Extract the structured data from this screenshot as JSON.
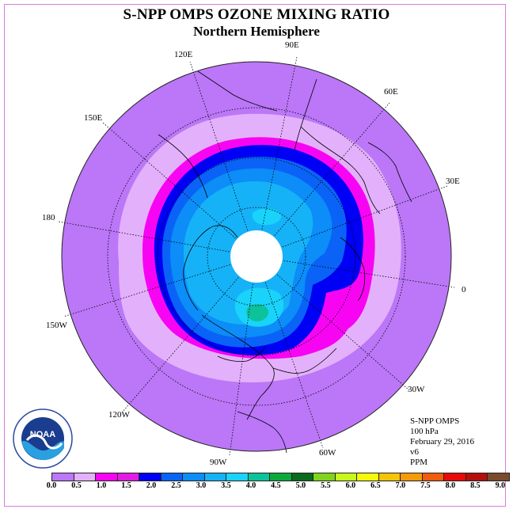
{
  "title": "S-NPP OMPS OZONE MIXING RATIO",
  "subtitle": "Northern Hemisphere",
  "longitude_labels": {
    "e90": "90E",
    "e60": "60E",
    "e30": "30E",
    "zero": "0",
    "w30": "30W",
    "w60": "60W",
    "w90": "90W",
    "w120": "120W",
    "w150": "150W",
    "lon180": "180",
    "e150": "150E",
    "e120": "120E"
  },
  "info": {
    "instrument": "S-NPP OMPS",
    "level": "100 hPa",
    "date": "February 29, 2016",
    "version": "v6",
    "units": "PPM"
  },
  "logo_text": "NOAA",
  "colorbar": {
    "colors": [
      "#bb77f7",
      "#e3b1fb",
      "#f705f3",
      "#e11ce4",
      "#0000f5",
      "#0a63f6",
      "#0c8df8",
      "#16b2f8",
      "#19d3fa",
      "#0cc29a",
      "#0aab3b",
      "#0a6a1d",
      "#81d41b",
      "#c7f81d",
      "#f6f90a",
      "#f5c309",
      "#f39b0a",
      "#f05b0c",
      "#e80a0a",
      "#b4100e",
      "#7a4a2c"
    ],
    "ticks": [
      "0.0",
      "0.5",
      "1.0",
      "1.5",
      "2.0",
      "2.5",
      "3.0",
      "3.5",
      "4.0",
      "4.5",
      "5.0",
      "5.5",
      "6.0",
      "6.5",
      "7.0",
      "7.5",
      "8.0",
      "8.5",
      "9.0"
    ]
  },
  "colors": {
    "background_field": "#bb77f7",
    "frame": "#e07ad8"
  }
}
